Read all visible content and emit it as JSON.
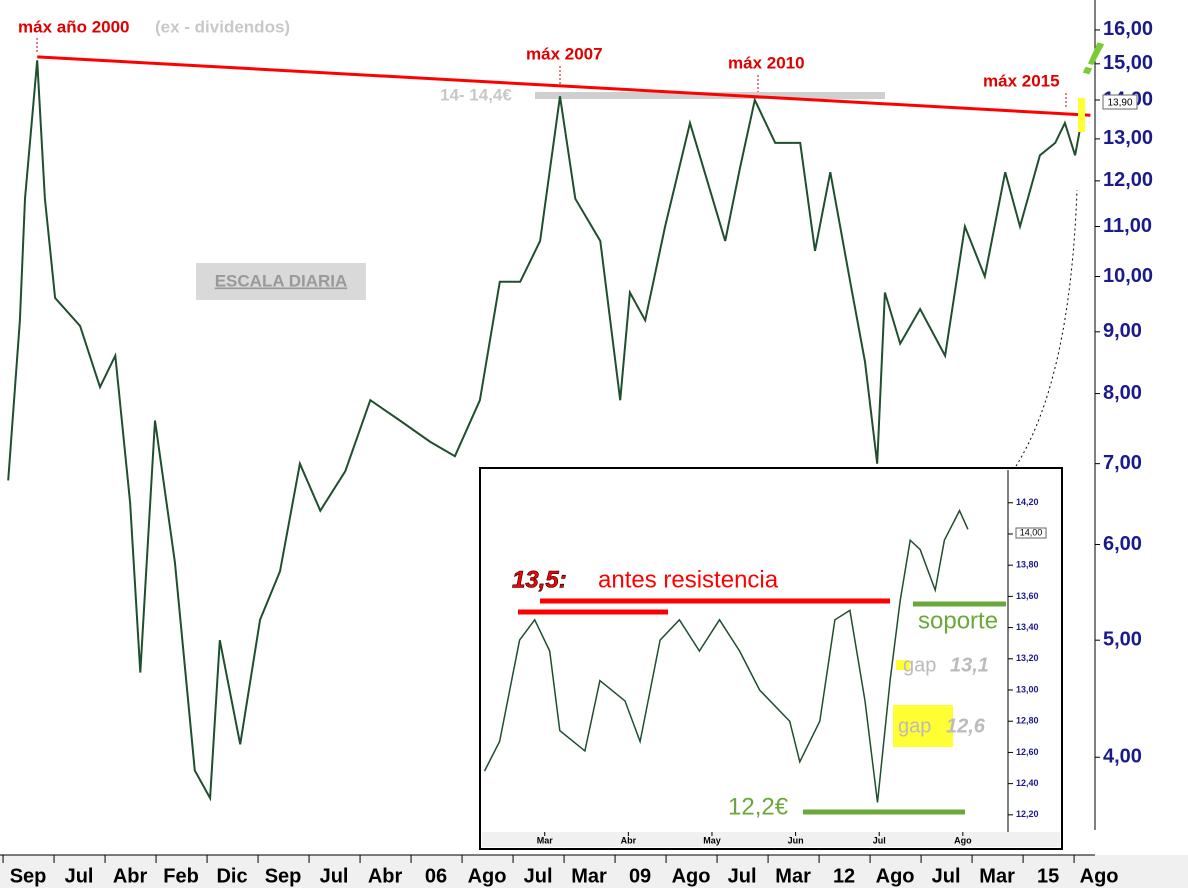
{
  "chart_data": [
    {
      "type": "line",
      "log_scale": true,
      "color": "#1f4f2f",
      "x": [
        -0.39,
        -0.16,
        -0.06,
        0.18,
        0.33,
        0.53,
        1.02,
        1.41,
        1.71,
        2.0,
        2.2,
        2.49,
        2.88,
        3.27,
        3.57,
        3.76,
        4.16,
        4.55,
        4.94,
        5.33,
        5.73,
        6.22,
        6.71,
        7.29,
        7.88,
        8.37,
        8.86,
        9.25,
        9.65,
        10.04,
        10.43,
        10.73,
        11.22,
        11.61,
        11.8,
        12.1,
        12.49,
        12.98,
        13.37,
        13.67,
        13.96,
        14.25,
        14.65,
        15.14,
        15.43,
        15.73,
        16.12,
        16.41,
        16.65,
        16.8,
        17.1,
        17.49,
        17.98,
        18.37,
        18.76,
        19.16,
        19.45,
        19.84,
        20.14,
        20.33,
        20.53,
        20.69
      ],
      "values": [
        6.78,
        9.2,
        11.6,
        15.1,
        11.6,
        9.6,
        9.1,
        8.1,
        8.6,
        6.5,
        4.7,
        7.6,
        5.8,
        3.9,
        3.7,
        5.0,
        4.1,
        5.2,
        5.7,
        7.0,
        6.4,
        6.9,
        7.9,
        7.6,
        7.3,
        7.1,
        7.9,
        9.9,
        9.9,
        10.7,
        14.1,
        11.6,
        10.7,
        7.9,
        9.7,
        9.2,
        11.0,
        13.4,
        11.8,
        10.7,
        12.3,
        14.0,
        12.9,
        12.9,
        10.5,
        12.2,
        9.9,
        8.5,
        7.0,
        9.7,
        8.8,
        9.4,
        8.6,
        11.0,
        10.0,
        12.2,
        11.0,
        12.6,
        12.9,
        13.4,
        12.6,
        13.7
      ],
      "trendline": {
        "x": [
          0.18,
          20.83
        ],
        "values": [
          15.2,
          13.6
        ],
        "color": "#ff0000"
      },
      "xlim": [
        -0.55,
        20.92
      ],
      "xticks": [
        {
          "value": 0,
          "label": "Sep"
        },
        {
          "value": 1,
          "label": "Jul"
        },
        {
          "value": 2,
          "label": "Abr"
        },
        {
          "value": 3,
          "label": "Feb"
        },
        {
          "value": 4,
          "label": "Dic"
        },
        {
          "value": 5,
          "label": "Sep"
        },
        {
          "value": 6,
          "label": "Jul"
        },
        {
          "value": 7,
          "label": "Abr"
        },
        {
          "value": 8,
          "label": "06"
        },
        {
          "value": 9,
          "label": "Ago"
        },
        {
          "value": 10,
          "label": "Jul"
        },
        {
          "value": 11,
          "label": "Mar"
        },
        {
          "value": 12,
          "label": "09"
        },
        {
          "value": 13,
          "label": "Ago"
        },
        {
          "value": 14,
          "label": "Jul"
        },
        {
          "value": 15,
          "label": "Mar"
        },
        {
          "value": 16,
          "label": "12"
        },
        {
          "value": 17,
          "label": "Ago"
        },
        {
          "value": 18,
          "label": "Jul"
        },
        {
          "value": 19,
          "label": "Mar"
        },
        {
          "value": 20,
          "label": "15"
        },
        {
          "value": 21,
          "label": "Ago"
        }
      ],
      "ylim": [
        3.32,
        16.94
      ],
      "yticks": [
        {
          "value": 4,
          "label": "4,00"
        },
        {
          "value": 5,
          "label": "5,00"
        },
        {
          "value": 6,
          "label": "6,00"
        },
        {
          "value": 7,
          "label": "7,00"
        },
        {
          "value": 8,
          "label": "8,00"
        },
        {
          "value": 9,
          "label": "9,00"
        },
        {
          "value": 10,
          "label": "10,00"
        },
        {
          "value": 11,
          "label": "11,00"
        },
        {
          "value": 12,
          "label": "12,00"
        },
        {
          "value": 13,
          "label": "13,00"
        },
        {
          "value": 14,
          "label": "14,00"
        },
        {
          "value": 15,
          "label": "15,00"
        },
        {
          "value": 16,
          "label": "16,00"
        }
      ],
      "annotations": [
        "máx año 2000",
        "(ex - dividendos)",
        "máx 2007",
        "máx 2010",
        "máx 2015",
        "14- 14,4€",
        "ESCALA DIARIA",
        "13,90",
        "!"
      ]
    },
    {
      "type": "line",
      "color": "#1f4f2f",
      "x": [
        -0.72,
        -0.54,
        -0.3,
        -0.12,
        0.06,
        0.18,
        0.48,
        0.66,
        0.96,
        1.14,
        1.38,
        1.61,
        1.85,
        2.09,
        2.33,
        2.57,
        2.93,
        3.05,
        3.29,
        3.47,
        3.65,
        3.83,
        3.98,
        4.03,
        4.13,
        4.25,
        4.37,
        4.49,
        4.67,
        4.78,
        4.96,
        5.06
      ],
      "values": [
        12.48,
        12.67,
        13.32,
        13.45,
        13.25,
        12.74,
        12.61,
        13.06,
        12.93,
        12.67,
        13.32,
        13.45,
        13.25,
        13.45,
        13.25,
        13.0,
        12.8,
        12.54,
        12.8,
        13.45,
        13.51,
        12.93,
        12.28,
        12.54,
        13.06,
        13.57,
        13.96,
        13.9,
        13.64,
        13.96,
        14.15,
        14.03
      ],
      "xlim": [
        -0.75,
        5.54
      ],
      "xticks": [
        {
          "value": 0,
          "label": "Mar"
        },
        {
          "value": 1,
          "label": "Abr"
        },
        {
          "value": 2,
          "label": "May"
        },
        {
          "value": 3,
          "label": "Jun"
        },
        {
          "value": 4,
          "label": "Jul"
        },
        {
          "value": 5,
          "label": "Ago"
        }
      ],
      "ylim": [
        12.09,
        14.41
      ],
      "yticks": [
        {
          "value": 12.2,
          "label": "12,20"
        },
        {
          "value": 12.4,
          "label": "12,40"
        },
        {
          "value": 12.6,
          "label": "12,60"
        },
        {
          "value": 12.8,
          "label": "12,80"
        },
        {
          "value": 13.0,
          "label": "13,00"
        },
        {
          "value": 13.2,
          "label": "13,20"
        },
        {
          "value": 13.4,
          "label": "13,40"
        },
        {
          "value": 13.6,
          "label": "13,60"
        },
        {
          "value": 13.8,
          "label": "13,80"
        },
        {
          "value": 14.0,
          "label": "14,00"
        },
        {
          "value": 14.2,
          "label": "14,20"
        }
      ],
      "annotations": [
        "13,5:",
        "antes resistencia",
        "soporte",
        "gap",
        "13,1",
        "gap",
        "12,6",
        "12,2€",
        "14,00"
      ]
    }
  ]
}
